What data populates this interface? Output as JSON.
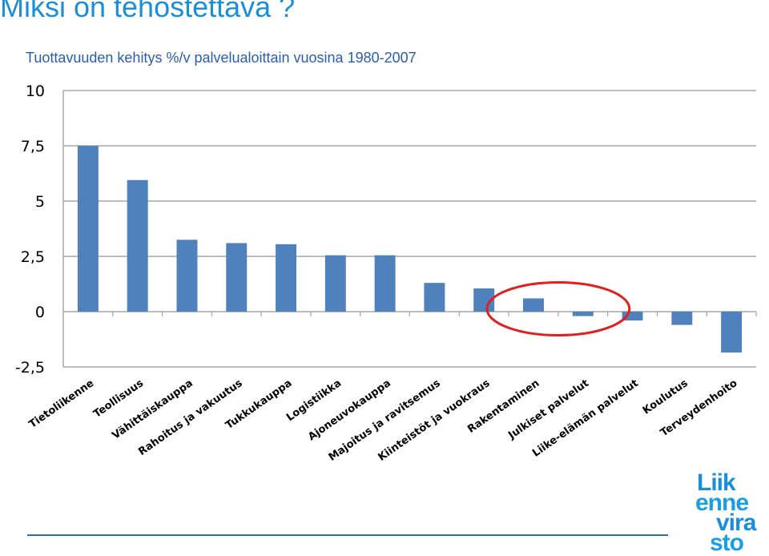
{
  "slide": {
    "title": "Miksi on tehostettava ?",
    "subtitle": "Tuottavuuden kehitys %/v palvelualoittain vuosina 1980-2007"
  },
  "logo": {
    "lines": [
      "Liik",
      "enne",
      "vira",
      "sto"
    ]
  },
  "colors": {
    "bar": "#4f81bd",
    "title": "#1a8fd8",
    "subtitle": "#2a5ea8",
    "highlight_ellipse": "#e02020",
    "grid": "#a6a6a6"
  },
  "chart_data": {
    "type": "bar",
    "title": "",
    "xlabel": "",
    "ylabel": "",
    "ylim": [
      -2.5,
      10
    ],
    "yticks": [
      10,
      7.5,
      5,
      2.5,
      0,
      -2.5
    ],
    "ytick_labels": [
      "10",
      "7,5",
      "5",
      "2,5",
      "0",
      "-2,5"
    ],
    "grid": true,
    "categories": [
      "Tietoliikenne",
      "Teollisuus",
      "Vähittäiskauppa",
      "Rahoitus ja vakuutus",
      "Tukkukauppa",
      "Logistiikka",
      "Ajoneuvokauppa",
      "Majoitus ja ravitsemus",
      "Kiinteistöt ja vuokraus",
      "Rakentaminen",
      "Julkiset palvelut",
      "Liike-elämän palvelut",
      "Koulutus",
      "Terveydenhoito"
    ],
    "values": [
      7.5,
      5.95,
      3.25,
      3.1,
      3.05,
      2.55,
      2.55,
      1.3,
      1.05,
      0.6,
      -0.2,
      -0.4,
      -0.6,
      -1.85
    ],
    "highlighted_categories": [
      "Rakentaminen",
      "Julkiset palvelut"
    ]
  }
}
